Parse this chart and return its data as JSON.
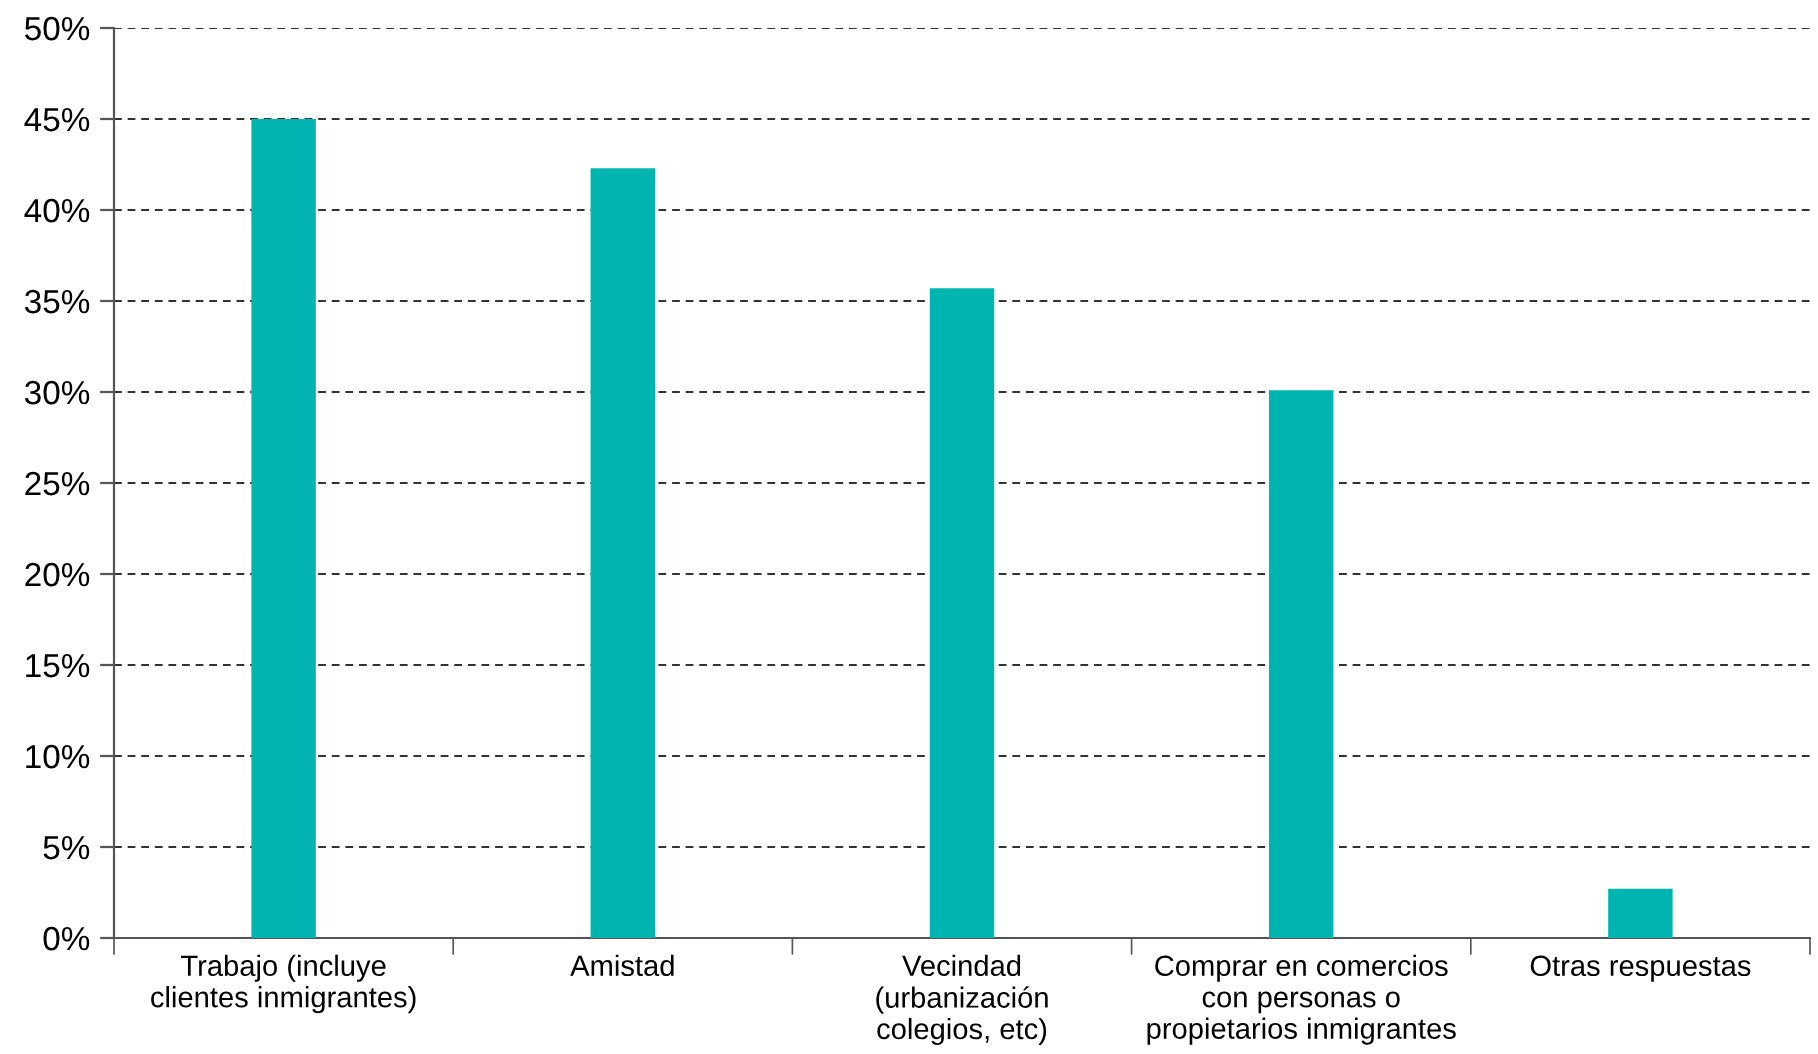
{
  "chart_data": {
    "type": "bar",
    "categories": [
      "Trabajo (incluye\nclientes inmigrantes)",
      "Amistad",
      "Vecindad\n(urbanización\ncolegios, etc)",
      "Comprar en comercios\ncon personas o\npropietarios inmigrantes",
      "Otras respuestas"
    ],
    "values": [
      45.0,
      42.3,
      35.7,
      30.1,
      2.7
    ],
    "color": "#00b5b0",
    "ylim": [
      0,
      50
    ],
    "yticks": [
      {
        "value": 0,
        "label": "0%"
      },
      {
        "value": 5,
        "label": "5%"
      },
      {
        "value": 10,
        "label": "10%"
      },
      {
        "value": 15,
        "label": "15%"
      },
      {
        "value": 20,
        "label": "20%"
      },
      {
        "value": 25,
        "label": "25%"
      },
      {
        "value": 30,
        "label": "30%"
      },
      {
        "value": 35,
        "label": "35%"
      },
      {
        "value": 40,
        "label": "40%"
      },
      {
        "value": 45,
        "label": "45%"
      },
      {
        "value": 50,
        "label": "50%"
      }
    ],
    "grid": "y"
  }
}
